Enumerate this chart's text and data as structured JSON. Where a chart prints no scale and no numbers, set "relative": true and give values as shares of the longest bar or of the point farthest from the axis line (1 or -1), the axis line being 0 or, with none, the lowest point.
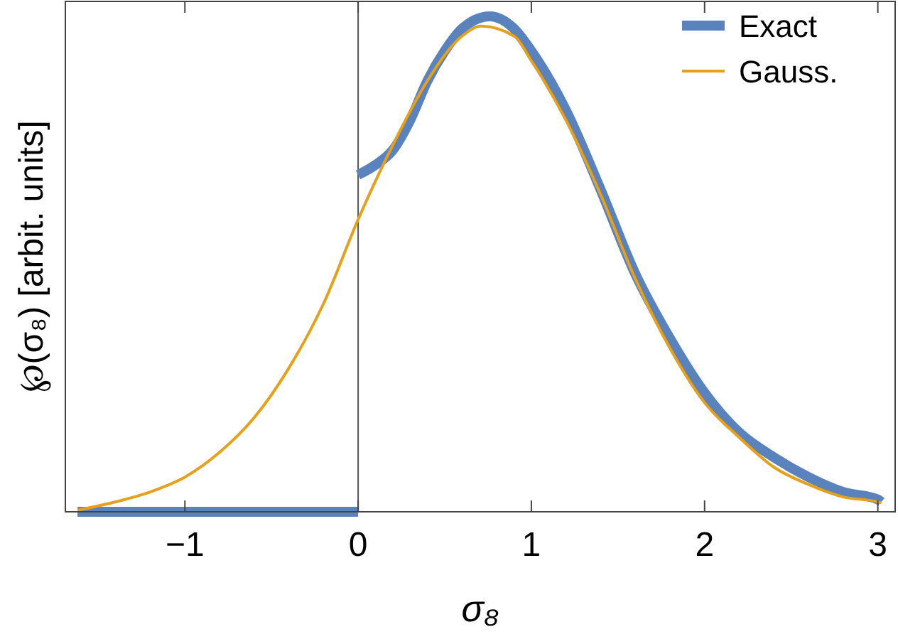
{
  "chart_data": {
    "type": "line",
    "relative": true,
    "xlabel": "σ₈",
    "ylabel": "℘(σ₈) [arbit. units]",
    "xlim": [
      -1.69,
      3.1
    ],
    "xticks": [
      {
        "value": -1,
        "label": "−1"
      },
      0,
      1,
      2,
      3
    ],
    "tick_labels": "x",
    "legend": "top right",
    "grid": false,
    "ref_lines": [
      {
        "axis": "x",
        "value": 0,
        "color": "#555555"
      }
    ],
    "series": [
      {
        "name": "Exact",
        "color": "#5a82bc",
        "x": [
          -1.62,
          0,
          0,
          0.1,
          0.2,
          0.3,
          0.4,
          0.5,
          0.6,
          0.76,
          0.9,
          1.0,
          1.2,
          1.4,
          1.6,
          1.8,
          2.0,
          2.2,
          2.4,
          2.6,
          2.8,
          3.0,
          3.02
        ],
        "values": [
          0,
          0,
          0.68,
          0.7,
          0.73,
          0.79,
          0.87,
          0.93,
          0.975,
          1,
          0.975,
          0.93,
          0.81,
          0.65,
          0.48,
          0.35,
          0.24,
          0.16,
          0.11,
          0.07,
          0.04,
          0.025,
          0.02
        ]
      },
      {
        "name": "Gauss.",
        "color": "#e5a11c",
        "x": [
          -1.62,
          -1.4,
          -1.2,
          -1.0,
          -0.8,
          -0.6,
          -0.4,
          -0.2,
          0,
          0.2,
          0.4,
          0.6,
          0.71,
          0.9,
          1.0,
          1.2,
          1.4,
          1.6,
          1.8,
          2.0,
          2.2,
          2.4,
          2.6,
          2.8,
          3.0,
          3.02
        ],
        "values": [
          0.003,
          0.02,
          0.04,
          0.07,
          0.12,
          0.19,
          0.29,
          0.42,
          0.59,
          0.74,
          0.87,
          0.96,
          0.98,
          0.96,
          0.91,
          0.79,
          0.64,
          0.47,
          0.33,
          0.22,
          0.15,
          0.09,
          0.055,
          0.03,
          0.02,
          0.018
        ]
      }
    ]
  }
}
